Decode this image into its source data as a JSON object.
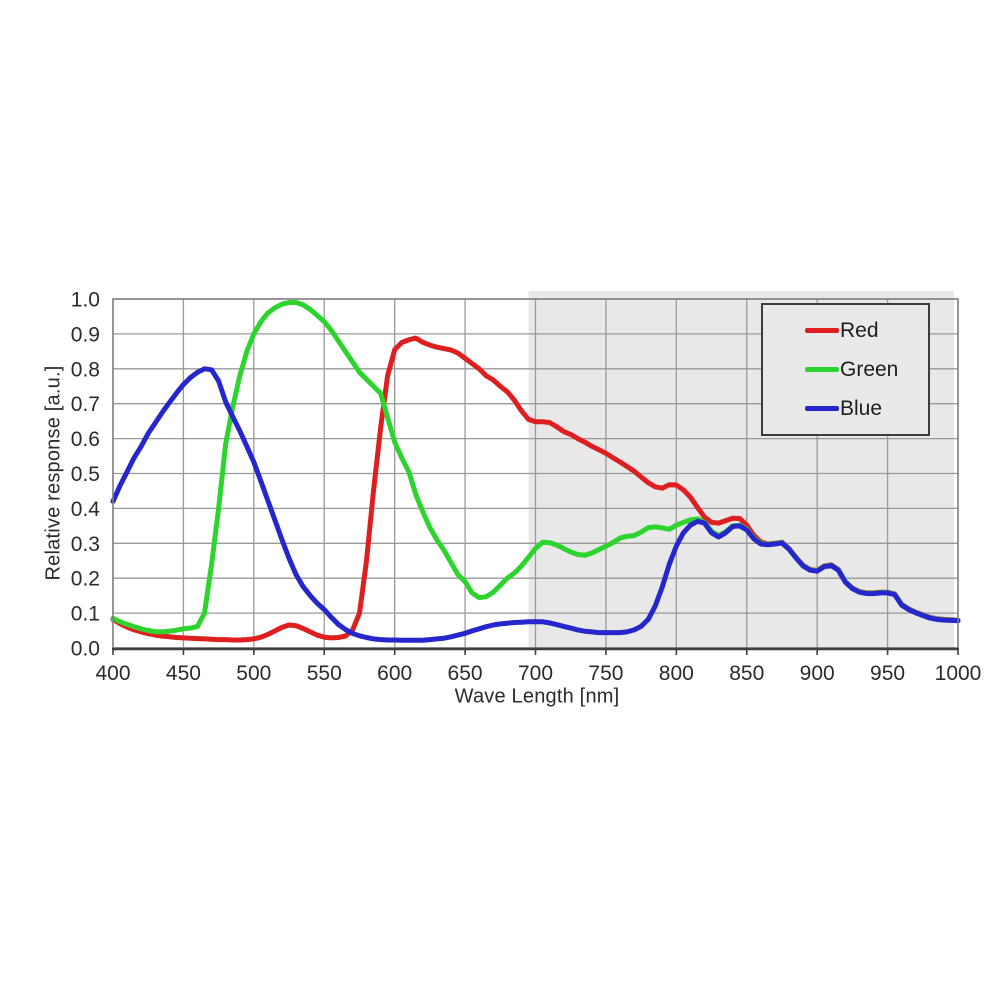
{
  "chart_data": {
    "type": "line",
    "xlabel": "Wave Length [nm]",
    "ylabel": "Relative response [a.u.]",
    "xlim": [
      400,
      1000
    ],
    "ylim": [
      0.0,
      1.0
    ],
    "grid": true,
    "x_tick_labels": [
      "400",
      "450",
      "500",
      "550",
      "600",
      "650",
      "700",
      "750",
      "800",
      "850",
      "900",
      "950",
      "1000"
    ],
    "y_tick_labels": [
      "0.0",
      "0.1",
      "0.2",
      "0.3",
      "0.4",
      "0.5",
      "0.6",
      "0.7",
      "0.8",
      "0.9",
      "1.0"
    ],
    "x_start_nm": 400,
    "x_step_nm": 5,
    "shaded_band": {
      "x_from": 700,
      "x_to": 1000,
      "color": "#e8e8e8"
    },
    "legend": {
      "position": "top-right",
      "entries": [
        {
          "label": "Red",
          "color": "#df1f1f"
        },
        {
          "label": "Green",
          "color": "#2ed42e"
        },
        {
          "label": "Blue",
          "color": "#2626cd"
        }
      ]
    },
    "series": [
      {
        "name": "Red",
        "color": "#df1f1f",
        "values": [
          0.082,
          0.07,
          0.06,
          0.052,
          0.046,
          0.041,
          0.037,
          0.034,
          0.032,
          0.03,
          0.029,
          0.028,
          0.027,
          0.026,
          0.025,
          0.024,
          0.024,
          0.023,
          0.023,
          0.024,
          0.026,
          0.031,
          0.039,
          0.049,
          0.059,
          0.066,
          0.064,
          0.056,
          0.046,
          0.037,
          0.031,
          0.029,
          0.03,
          0.034,
          0.05,
          0.1,
          0.25,
          0.45,
          0.63,
          0.78,
          0.855,
          0.875,
          0.883,
          0.888,
          0.876,
          0.868,
          0.862,
          0.858,
          0.854,
          0.845,
          0.83,
          0.815,
          0.8,
          0.78,
          0.768,
          0.75,
          0.734,
          0.71,
          0.68,
          0.655,
          0.648,
          0.648,
          0.646,
          0.634,
          0.62,
          0.612,
          0.6,
          0.59,
          0.578,
          0.568,
          0.558,
          0.545,
          0.533,
          0.52,
          0.507,
          0.49,
          0.474,
          0.462,
          0.458,
          0.468,
          0.467,
          0.453,
          0.432,
          0.403,
          0.375,
          0.36,
          0.358,
          0.365,
          0.372,
          0.371,
          0.352,
          0.323,
          0.304,
          0.298,
          0.3,
          0.303,
          0.285,
          0.26,
          0.237,
          0.225,
          0.222,
          0.235,
          0.238,
          0.225,
          0.19,
          0.172,
          0.162,
          0.158,
          0.158,
          0.16,
          0.16,
          0.155,
          0.125,
          0.112,
          0.103,
          0.095,
          0.088,
          0.084,
          0.082,
          0.081,
          0.08
        ]
      },
      {
        "name": "Green",
        "color": "#2ed42e",
        "values": [
          0.085,
          0.075,
          0.068,
          0.061,
          0.055,
          0.05,
          0.047,
          0.046,
          0.048,
          0.051,
          0.055,
          0.057,
          0.062,
          0.1,
          0.24,
          0.4,
          0.585,
          0.69,
          0.78,
          0.85,
          0.9,
          0.935,
          0.96,
          0.975,
          0.985,
          0.99,
          0.99,
          0.983,
          0.97,
          0.953,
          0.935,
          0.91,
          0.88,
          0.85,
          0.82,
          0.79,
          0.77,
          0.75,
          0.73,
          0.66,
          0.59,
          0.545,
          0.505,
          0.44,
          0.39,
          0.345,
          0.31,
          0.28,
          0.245,
          0.21,
          0.19,
          0.158,
          0.144,
          0.147,
          0.16,
          0.18,
          0.2,
          0.215,
          0.235,
          0.26,
          0.285,
          0.303,
          0.302,
          0.295,
          0.285,
          0.275,
          0.268,
          0.266,
          0.272,
          0.282,
          0.292,
          0.302,
          0.315,
          0.32,
          0.322,
          0.332,
          0.345,
          0.347,
          0.344,
          0.34,
          0.352,
          0.36,
          0.367,
          0.37,
          0.36,
          0.335,
          0.322,
          0.333,
          0.35,
          0.352,
          0.34,
          0.315,
          0.3,
          0.297,
          0.299,
          0.302,
          0.284,
          0.259,
          0.236,
          0.224,
          0.221,
          0.234,
          0.237,
          0.224,
          0.19,
          0.171,
          0.161,
          0.157,
          0.157,
          0.159,
          0.159,
          0.154,
          0.124,
          0.111,
          0.102,
          0.094,
          0.087,
          0.083,
          0.081,
          0.08,
          0.079
        ]
      },
      {
        "name": "Blue",
        "color": "#2626cd",
        "values": [
          0.42,
          0.465,
          0.505,
          0.545,
          0.578,
          0.615,
          0.645,
          0.675,
          0.703,
          0.73,
          0.755,
          0.775,
          0.79,
          0.8,
          0.797,
          0.765,
          0.705,
          0.663,
          0.622,
          0.578,
          0.533,
          0.478,
          0.422,
          0.366,
          0.31,
          0.257,
          0.21,
          0.176,
          0.15,
          0.128,
          0.11,
          0.088,
          0.068,
          0.053,
          0.042,
          0.035,
          0.03,
          0.026,
          0.024,
          0.023,
          0.023,
          0.022,
          0.022,
          0.022,
          0.022,
          0.024,
          0.026,
          0.028,
          0.032,
          0.037,
          0.042,
          0.049,
          0.055,
          0.061,
          0.066,
          0.069,
          0.071,
          0.073,
          0.074,
          0.075,
          0.075,
          0.075,
          0.072,
          0.067,
          0.062,
          0.057,
          0.052,
          0.048,
          0.046,
          0.044,
          0.044,
          0.044,
          0.044,
          0.046,
          0.052,
          0.062,
          0.082,
          0.12,
          0.175,
          0.24,
          0.292,
          0.33,
          0.352,
          0.363,
          0.358,
          0.33,
          0.318,
          0.33,
          0.348,
          0.35,
          0.338,
          0.313,
          0.298,
          0.296,
          0.298,
          0.301,
          0.283,
          0.258,
          0.235,
          0.223,
          0.22,
          0.233,
          0.236,
          0.223,
          0.189,
          0.17,
          0.16,
          0.156,
          0.156,
          0.158,
          0.158,
          0.153,
          0.123,
          0.11,
          0.101,
          0.093,
          0.086,
          0.082,
          0.08,
          0.079,
          0.078
        ]
      }
    ]
  },
  "colors": {
    "background": "#ffffff",
    "grid": "#999999",
    "frame": "#7d7d7d",
    "axis": "#3f3f3f",
    "tick_text": "#2b2b2b",
    "shade": "#e8e8e8",
    "legend_bg": "#e9e9e9",
    "legend_border": "#3c3c3c"
  }
}
